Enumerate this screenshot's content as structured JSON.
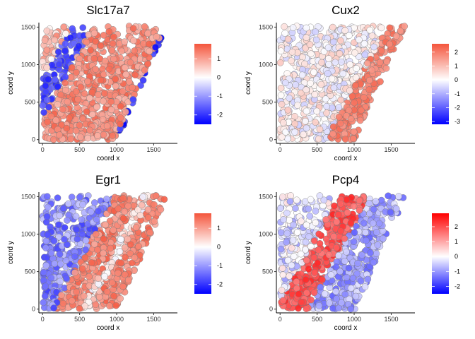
{
  "chart_data": [
    {
      "type": "scatter",
      "title": "Slc17a7",
      "xlabel": "coord x",
      "ylabel": "coord y",
      "xlim": [
        -50,
        1820
      ],
      "ylim": [
        -50,
        1560
      ],
      "x_ticks": [
        "0",
        "500",
        "1000",
        "1500"
      ],
      "y_ticks": [
        "0",
        "500",
        "1000",
        "1500"
      ],
      "color_scale": {
        "low": "#0000ff",
        "mid": "#ffffff",
        "high": "#f4553c",
        "range": [
          -2.5,
          1.8
        ]
      },
      "legend_ticks": [
        "1",
        "0",
        "-1",
        "-2"
      ],
      "legend_tick_values": [
        1,
        0,
        -1,
        -2
      ],
      "pattern": "Broad high-expression band in the central and lower region of the section; low expression in a diagonal strip on the left and along the right edge."
    },
    {
      "type": "scatter",
      "title": "Cux2",
      "xlabel": "coord x",
      "ylabel": "coord y",
      "xlim": [
        -50,
        1820
      ],
      "ylim": [
        -50,
        1560
      ],
      "x_ticks": [
        "0",
        "500",
        "1000",
        "1500"
      ],
      "y_ticks": [
        "0",
        "500",
        "1000",
        "1500"
      ],
      "color_scale": {
        "low": "#0000ff",
        "mid": "#ffffff",
        "high": "#f4553c",
        "range": [
          -3.2,
          2.6
        ]
      },
      "legend_ticks": [
        "2",
        "1",
        "0",
        "-1",
        "-2",
        "-3"
      ],
      "legend_tick_values": [
        2,
        1,
        0,
        -1,
        -2,
        -3
      ],
      "pattern": "Narrow high-expression diagonal band on the right side; mostly near-zero expression elsewhere."
    },
    {
      "type": "scatter",
      "title": "Egr1",
      "xlabel": "coord x",
      "ylabel": "coord y",
      "xlim": [
        -50,
        1820
      ],
      "ylim": [
        -50,
        1560
      ],
      "x_ticks": [
        "0",
        "500",
        "1000",
        "1500"
      ],
      "y_ticks": [
        "0",
        "500",
        "1000",
        "1500"
      ],
      "color_scale": {
        "low": "#0000ff",
        "mid": "#ffffff",
        "high": "#f4553c",
        "range": [
          -2.5,
          1.8
        ]
      },
      "legend_ticks": [
        "1",
        "0",
        "-1",
        "-2"
      ],
      "legend_tick_values": [
        1,
        0,
        -1,
        -2
      ],
      "pattern": "Two parallel diagonal high-expression bands separated by a lighter gap; low expression at the left and right margins."
    },
    {
      "type": "scatter",
      "title": "Pcp4",
      "xlabel": "coord x",
      "ylabel": "coord y",
      "xlim": [
        -50,
        1820
      ],
      "ylim": [
        -50,
        1560
      ],
      "x_ticks": [
        "0",
        "500",
        "1000",
        "1500"
      ],
      "y_ticks": [
        "0",
        "500",
        "1000",
        "1500"
      ],
      "color_scale": {
        "low": "#0000ff",
        "mid": "#ffffff",
        "high": "#ff0000",
        "range": [
          -2.5,
          2.9
        ]
      },
      "legend_ticks": [
        "2",
        "1",
        "0",
        "-1",
        "-2"
      ],
      "legend_tick_values": [
        2,
        1,
        0,
        -1,
        -2
      ],
      "pattern": "Strong high-expression diagonal band on the left side; low expression toward the right."
    }
  ]
}
